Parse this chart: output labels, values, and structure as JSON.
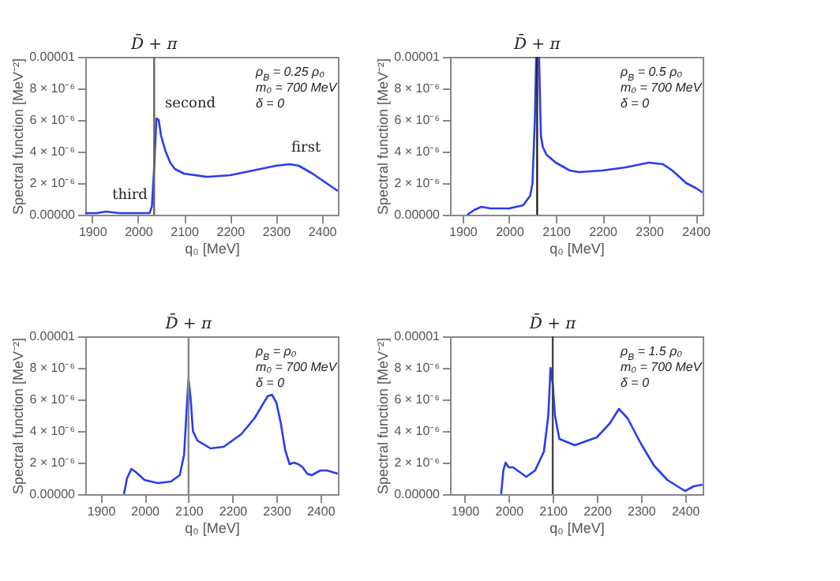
{
  "chart_data": [
    {
      "type": "line",
      "xlabel": "q₀ [MeV]",
      "ylabel": "Spectral function [MeV⁻²]",
      "xlim": [
        1885,
        2435
      ],
      "xticks": [
        1900,
        2000,
        2100,
        2200,
        2300,
        2400
      ],
      "ylim": [
        0,
        1e-05
      ],
      "yticks": [
        {
          "value": 0,
          "label": "0.00000"
        },
        {
          "value": 2e-06,
          "label": "2 × 10⁻⁶"
        },
        {
          "value": 4e-06,
          "label": "4 × 10⁻⁶"
        },
        {
          "value": 6e-06,
          "label": "6 × 10⁻⁶"
        },
        {
          "value": 8e-06,
          "label": "8 × 10⁻⁶"
        },
        {
          "value": 1e-05,
          "label": "0.00001"
        }
      ],
      "grid": false,
      "x": [
        1885,
        1910,
        1930,
        1960,
        2000,
        2025,
        2030,
        2035,
        2040,
        2045,
        2050,
        2060,
        2070,
        2080,
        2100,
        2150,
        2200,
        2250,
        2300,
        2330,
        2350,
        2380,
        2400,
        2435
      ],
      "series": [
        {
          "color": "#2a3cf0",
          "values": [
            1e-07,
            1e-07,
            2e-07,
            1e-07,
            1e-07,
            1e-07,
            5e-07,
            3e-06,
            6.1e-06,
            6e-06,
            5e-06,
            4e-06,
            3.3e-06,
            2.9e-06,
            2.6e-06,
            2.4e-06,
            2.5e-06,
            2.8e-06,
            3.1e-06,
            3.2e-06,
            3.1e-06,
            2.6e-06,
            2.2e-06,
            1.5e-06
          ]
        }
      ],
      "ref_lines": [
        {
          "axis": "x",
          "value": 2035,
          "label": "D̄ + π",
          "color": "#666666"
        }
      ],
      "annotations": [
        "ρ$_{B}$ = 0.25 ρ₀",
        "m₀ = 700 MeV",
        "δ = 0",
        {
          "text": "third",
          "x": 1930,
          "y": 2e-07
        },
        {
          "text": "second",
          "x": 2045,
          "y": 6e-06
        },
        {
          "text": "first",
          "x": 2320,
          "y": 3.2e-06
        }
      ]
    },
    {
      "type": "line",
      "xlabel": "q₀ [MeV]",
      "ylabel": "Spectral function [MeV⁻²]",
      "xlim": [
        1873,
        2415
      ],
      "xticks": [
        1900,
        2000,
        2100,
        2200,
        2300,
        2400
      ],
      "ylim": [
        0,
        1e-05
      ],
      "yticks": [
        {
          "value": 0,
          "label": "0.00000"
        },
        {
          "value": 2e-06,
          "label": "2 × 10⁻⁶"
        },
        {
          "value": 4e-06,
          "label": "4 × 10⁻⁶"
        },
        {
          "value": 6e-06,
          "label": "6 × 10⁻⁶"
        },
        {
          "value": 8e-06,
          "label": "8 × 10⁻⁶"
        },
        {
          "value": 1e-05,
          "label": "0.00001"
        }
      ],
      "grid": false,
      "x": [
        1910,
        1925,
        1940,
        1960,
        2000,
        2030,
        2045,
        2050,
        2055,
        2058,
        2064,
        2068,
        2072,
        2080,
        2100,
        2130,
        2150,
        2200,
        2250,
        2300,
        2330,
        2350,
        2380,
        2400,
        2415
      ],
      "series": [
        {
          "color": "#2a3cf0",
          "values": [
            0,
            3e-07,
            5e-07,
            4e-07,
            4e-07,
            6e-07,
            1.2e-06,
            2e-06,
            6e-06,
            1e-05,
            1e-05,
            5e-06,
            4.3e-06,
            3.8e-06,
            3.3e-06,
            2.8e-06,
            2.7e-06,
            2.8e-06,
            3e-06,
            3.3e-06,
            3.2e-06,
            2.8e-06,
            2e-06,
            1.7e-06,
            1.4e-06
          ]
        }
      ],
      "ref_lines": [
        {
          "axis": "x",
          "value": 2060,
          "label": "D̄ + π",
          "color": "#222222"
        }
      ],
      "annotations": [
        "ρ$_{B}$ = 0.5 ρ₀",
        "m₀ = 700 MeV",
        "δ = 0"
      ]
    },
    {
      "type": "line",
      "xlabel": "q₀ [MeV]",
      "ylabel": "Spectral function [MeV⁻²]",
      "xlim": [
        1865,
        2440
      ],
      "xticks": [
        1900,
        2000,
        2100,
        2200,
        2300,
        2400
      ],
      "ylim": [
        0,
        1e-05
      ],
      "yticks": [
        {
          "value": 0,
          "label": "0.00000"
        },
        {
          "value": 2e-06,
          "label": "2 × 10⁻⁶"
        },
        {
          "value": 4e-06,
          "label": "4 × 10⁻⁶"
        },
        {
          "value": 6e-06,
          "label": "6 × 10⁻⁶"
        },
        {
          "value": 8e-06,
          "label": "8 × 10⁻⁶"
        },
        {
          "value": 1e-05,
          "label": "0.00001"
        }
      ],
      "grid": false,
      "x": [
        1953,
        1960,
        1970,
        1980,
        2000,
        2030,
        2060,
        2080,
        2090,
        2095,
        2100,
        2105,
        2110,
        2120,
        2150,
        2180,
        2220,
        2250,
        2280,
        2290,
        2300,
        2310,
        2320,
        2330,
        2340,
        2350,
        2360,
        2370,
        2380,
        2400,
        2415,
        2440
      ],
      "series": [
        {
          "color": "#2a3cf0",
          "values": [
            0,
            1e-06,
            1.6e-06,
            1.4e-06,
            9e-07,
            7e-07,
            8e-07,
            1.2e-06,
            2.5e-06,
            5e-06,
            7.3e-06,
            6e-06,
            4e-06,
            3.4e-06,
            2.9e-06,
            3e-06,
            3.8e-06,
            4.8e-06,
            6.2e-06,
            6.3e-06,
            5.8e-06,
            4.5e-06,
            2.8e-06,
            1.9e-06,
            2e-06,
            1.9e-06,
            1.7e-06,
            1.3e-06,
            1.2e-06,
            1.5e-06,
            1.5e-06,
            1.3e-06
          ]
        }
      ],
      "ref_lines": [
        {
          "axis": "x",
          "value": 2100,
          "label": "D̄ + π",
          "color": "#888888"
        }
      ],
      "annotations": [
        "ρ$_{B}$ = ρ₀",
        "m₀ = 700 MeV",
        "δ = 0"
      ]
    },
    {
      "type": "line",
      "xlabel": "q₀ [MeV]",
      "ylabel": "Spectral function [MeV⁻²]",
      "xlim": [
        1867,
        2440
      ],
      "xticks": [
        1900,
        2000,
        2100,
        2200,
        2300,
        2400
      ],
      "ylim": [
        0,
        1e-05
      ],
      "yticks": [
        {
          "value": 0,
          "label": "0.00000"
        },
        {
          "value": 2e-06,
          "label": "2 × 10⁻⁶"
        },
        {
          "value": 4e-06,
          "label": "4 × 10⁻⁶"
        },
        {
          "value": 6e-06,
          "label": "6 × 10⁻⁶"
        },
        {
          "value": 8e-06,
          "label": "8 × 10⁻⁶"
        },
        {
          "value": 1e-05,
          "label": "0.00001"
        }
      ],
      "grid": false,
      "x": [
        1983,
        1988,
        1993,
        2000,
        2010,
        2020,
        2040,
        2060,
        2080,
        2090,
        2095,
        2100,
        2105,
        2115,
        2150,
        2200,
        2230,
        2250,
        2270,
        2300,
        2330,
        2360,
        2400,
        2420,
        2440
      ],
      "series": [
        {
          "color": "#2a3cf0",
          "values": [
            0,
            1.5e-06,
            2e-06,
            1.7e-06,
            1.7e-06,
            1.5e-06,
            1.1e-06,
            1.5e-06,
            2.7e-06,
            5e-06,
            8e-06,
            7e-06,
            5e-06,
            3.5e-06,
            3.1e-06,
            3.6e-06,
            4.5e-06,
            5.4e-06,
            4.8e-06,
            3.2e-06,
            1.8e-06,
            9e-07,
            2e-07,
            5e-07,
            6e-07
          ]
        }
      ],
      "ref_lines": [
        {
          "axis": "x",
          "value": 2100,
          "label": "D̄ + π",
          "color": "#444444"
        }
      ],
      "annotations": [
        "ρ$_{B}$ = 1.5 ρ₀",
        "m₀ = 700 MeV",
        "δ = 0"
      ]
    }
  ]
}
